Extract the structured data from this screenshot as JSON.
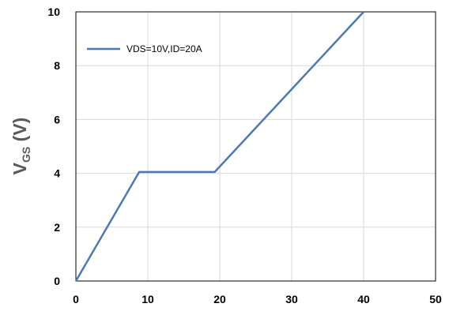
{
  "chart_data": {
    "type": "line",
    "title": "",
    "xlabel": "",
    "ylabel": "V",
    "ylabel_subscript": "GS",
    "ylabel_suffix": " (V)",
    "xlim": [
      0,
      50
    ],
    "ylim": [
      0,
      10
    ],
    "xticks": [
      "0",
      "10",
      "20",
      "30",
      "40",
      "50"
    ],
    "yticks": [
      "0",
      "2",
      "4",
      "6",
      "8",
      "10"
    ],
    "grid": true,
    "legend_position": "top-left",
    "series": [
      {
        "name": "VDS=10V,ID=20A",
        "color": "#4A7AB5",
        "x": [
          0,
          8.8,
          19.3,
          40
        ],
        "y": [
          0,
          4.05,
          4.05,
          10
        ]
      }
    ]
  }
}
